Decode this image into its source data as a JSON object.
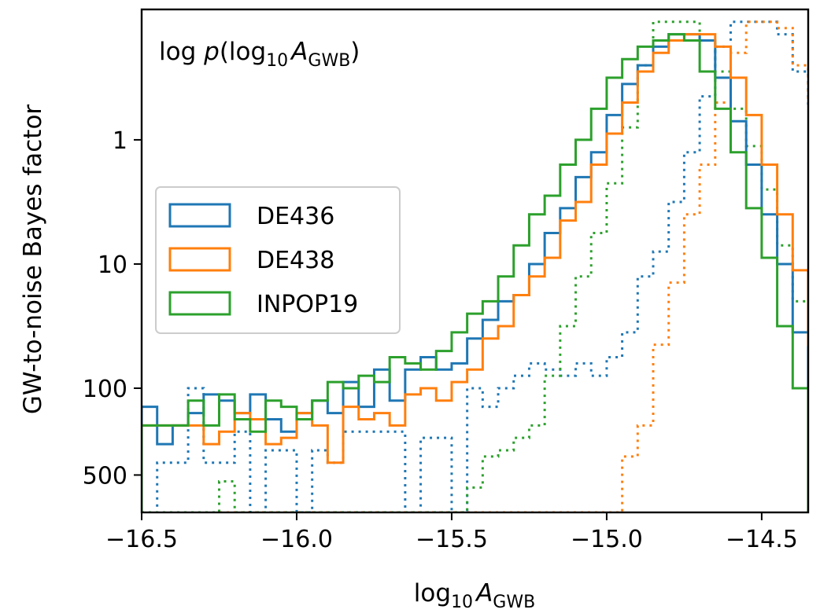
{
  "chart_data": {
    "type": "step-histogram",
    "title": "log p(log10 A_GWB)",
    "title_parts": {
      "pre": "log ",
      "p": "p",
      "open": "(log",
      "sub": "10",
      "A": "A",
      "Asub": "GWB",
      "close": ")"
    },
    "xlabel": "log10 A_GWB",
    "xlabel_parts": {
      "base": "log",
      "sub": "10",
      "A": "A",
      "Asub": "GWB"
    },
    "ylabel": "GW-to-noise Bayes factor",
    "xlim": [
      -16.5,
      -14.35
    ],
    "xticks": [
      -16.5,
      -16.0,
      -15.5,
      -15.0,
      -14.5
    ],
    "xtick_labels": [
      "−16.5",
      "−16.0",
      "−15.5",
      "−15.0",
      "−14.5"
    ],
    "yticks": [
      1,
      10,
      100,
      500
    ],
    "ytick_labels": [
      "1",
      "10",
      "100",
      "500"
    ],
    "y_scale": "log (inverted Bayes factor)",
    "ylim_log_pdf": [
      -3.0,
      1.05
    ],
    "legend_placement": "center-left",
    "bin_edges_start": -16.5,
    "bin_width": 0.05,
    "series": [
      {
        "name": "DE436",
        "color": "#1f77b4",
        "values": [
          -2.15,
          -2.45,
          -2.3,
          -2.2,
          -2.05,
          -2.1,
          -2.2,
          -2.05,
          -2.25,
          -2.35,
          -2.2,
          -2.1,
          -2.2,
          -1.95,
          -2.15,
          -1.85,
          -2.1,
          -1.85,
          -1.75,
          -1.85,
          -1.8,
          -1.6,
          -1.45,
          -1.3,
          -1.25,
          -1.0,
          -0.75,
          -0.55,
          -0.3,
          -0.1,
          0.2,
          0.45,
          0.6,
          0.75,
          0.85,
          0.85,
          0.8,
          0.5,
          0.15,
          -0.2,
          -0.6,
          -1.0,
          -1.55,
          -2.05,
          -3.0
        ]
      },
      {
        "name": "DE438",
        "color": "#ff7f0e",
        "values": [
          -2.3,
          -2.3,
          -2.3,
          -2.3,
          -2.45,
          -2.35,
          -2.2,
          -2.25,
          -2.45,
          -2.4,
          -2.2,
          -2.3,
          -2.6,
          -2.15,
          -2.25,
          -2.2,
          -2.3,
          -2.05,
          -2.0,
          -2.1,
          -1.95,
          -1.85,
          -1.6,
          -1.5,
          -1.25,
          -1.1,
          -0.95,
          -0.65,
          -0.5,
          -0.2,
          0.05,
          0.3,
          0.55,
          0.7,
          0.8,
          0.85,
          0.85,
          0.75,
          0.5,
          0.2,
          -0.2,
          -0.6,
          -1.05,
          -1.65,
          -2.3,
          -3.0
        ]
      },
      {
        "name": "INPOP19",
        "color": "#2ca02c",
        "values": [
          -2.3,
          -2.3,
          -2.3,
          -2.1,
          -2.3,
          -2.05,
          -2.25,
          -2.35,
          -2.1,
          -2.15,
          -2.25,
          -2.1,
          -1.95,
          -2.0,
          -1.9,
          -1.95,
          -1.75,
          -1.8,
          -1.85,
          -1.7,
          -1.55,
          -1.4,
          -1.3,
          -1.1,
          -0.85,
          -0.6,
          -0.45,
          -0.2,
          0.0,
          0.25,
          0.5,
          0.65,
          0.75,
          0.8,
          0.85,
          0.8,
          0.55,
          0.25,
          -0.1,
          -0.55,
          -0.95,
          -1.5,
          -2.0,
          -3.0
        ]
      }
    ],
    "dotted_series": [
      {
        "color": "#1f77b4",
        "values": [
          -3.0,
          -2.6,
          -2.6,
          -2.0,
          -2.6,
          -2.6,
          -2.35,
          -3.0,
          -2.5,
          -2.5,
          -3.0,
          -2.5,
          -2.6,
          -2.35,
          -2.35,
          -2.35,
          -2.35,
          -3.0,
          -2.4,
          -2.4,
          -3.0,
          -2.0,
          -2.15,
          -2.0,
          -1.9,
          -1.8,
          -1.85,
          -1.9,
          -1.8,
          -1.9,
          -1.75,
          -1.55,
          -1.1,
          -0.9,
          -0.5,
          -0.1,
          0.35,
          0.75,
          0.95,
          0.95,
          0.95,
          0.85,
          0.55,
          0.25,
          -0.05,
          -0.45,
          -0.9,
          -1.45,
          -2.1,
          -2.75,
          -3.0
        ]
      },
      {
        "color": "#ff7f0e",
        "values": [
          -3.0,
          -3.0,
          -3.0,
          -3.0,
          -3.0,
          -3.0,
          -3.0,
          -3.0,
          -3.0,
          -3.0,
          -3.0,
          -3.0,
          -3.0,
          -3.0,
          -3.0,
          -3.0,
          -3.0,
          -3.0,
          -3.0,
          -3.0,
          -3.0,
          -3.0,
          -3.0,
          -3.0,
          -3.0,
          -3.0,
          -3.0,
          -3.0,
          -3.0,
          -3.0,
          -3.0,
          -2.55,
          -2.3,
          -1.65,
          -1.15,
          -0.6,
          -0.2,
          0.3,
          0.7,
          0.95,
          0.95,
          0.9,
          0.6,
          0.3,
          -0.05,
          -0.4,
          -0.85,
          -1.3,
          -2.05,
          -2.65,
          -3.0
        ]
      },
      {
        "color": "#2ca02c",
        "values": [
          -3.0,
          -3.0,
          -3.0,
          -3.0,
          -3.0,
          -2.75,
          -3.0,
          -3.0,
          -3.0,
          -3.0,
          -3.0,
          -3.0,
          -3.0,
          -3.0,
          -3.0,
          -3.0,
          -3.0,
          -3.0,
          -3.0,
          -3.0,
          -3.0,
          -2.8,
          -2.55,
          -2.5,
          -2.4,
          -2.3,
          -1.9,
          -1.5,
          -1.1,
          -0.75,
          -0.35,
          0.1,
          0.6,
          0.95,
          0.95,
          0.95,
          0.8,
          0.55,
          0.25,
          -0.05,
          -0.4,
          -0.85,
          -1.3,
          -1.9,
          -2.55,
          -3.0
        ]
      }
    ]
  }
}
